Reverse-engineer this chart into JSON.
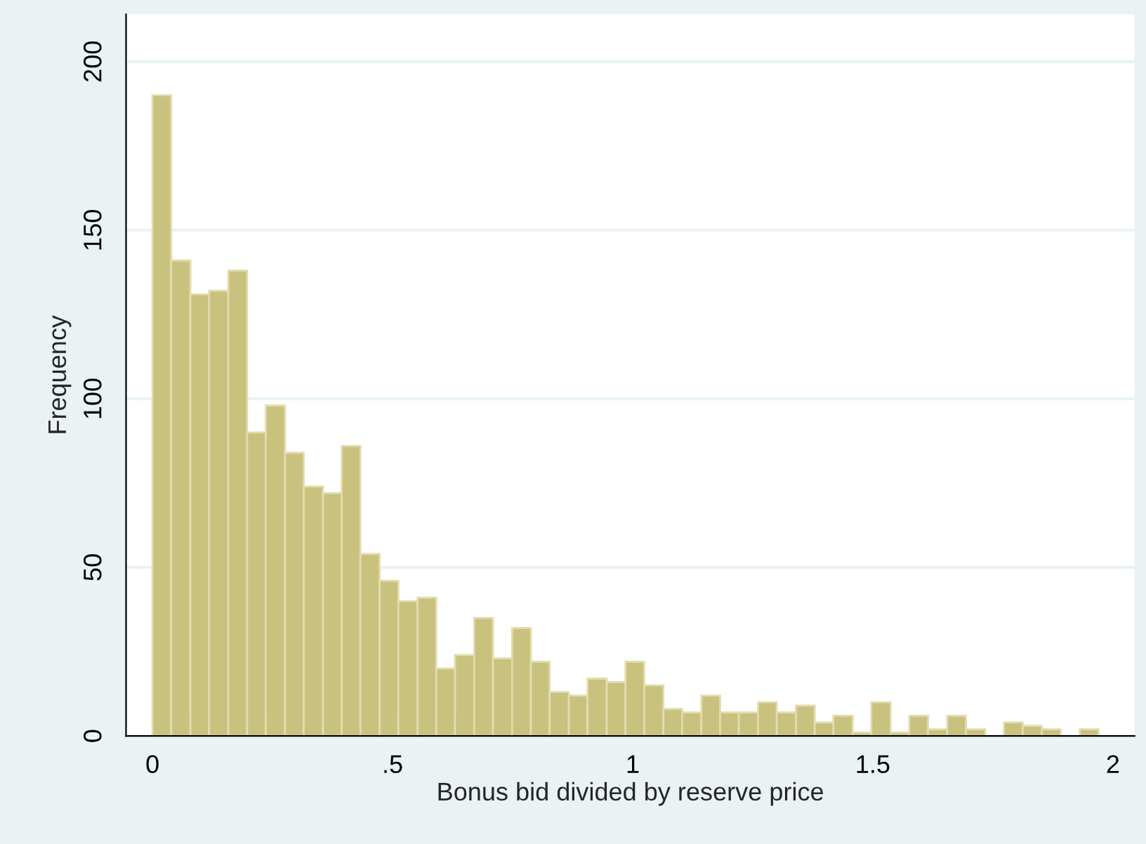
{
  "chart_data": {
    "type": "histogram",
    "xlabel": "Bonus bid divided by reserve price",
    "ylabel": "Frequency",
    "bins": [
      0,
      0.039,
      0.079,
      0.118,
      0.158,
      0.197,
      0.236,
      0.276,
      0.315,
      0.355,
      0.394,
      0.433,
      0.473,
      0.512,
      0.552,
      0.591,
      0.63,
      0.67,
      0.709,
      0.749,
      0.788,
      0.827,
      0.867,
      0.906,
      0.946,
      0.985,
      1.024,
      1.064,
      1.103,
      1.143,
      1.182,
      1.221,
      1.261,
      1.3,
      1.34,
      1.379,
      1.418,
      1.458,
      1.497,
      1.537,
      1.576,
      1.615,
      1.655,
      1.694,
      1.734,
      1.773,
      1.812,
      1.852,
      1.891,
      1.931,
      1.97
    ],
    "values": [
      190,
      141,
      131,
      132,
      138,
      90,
      98,
      84,
      74,
      72,
      86,
      54,
      46,
      40,
      41,
      20,
      24,
      35,
      23,
      32,
      22,
      13,
      12,
      17,
      16,
      22,
      15,
      8,
      7,
      12,
      7,
      7,
      10,
      7,
      9,
      4,
      6,
      1,
      10,
      1,
      6,
      2,
      6,
      2,
      0,
      4,
      3,
      2,
      0,
      2
    ],
    "color": "#c9c17e",
    "xlim": [
      -0.055,
      2.045
    ],
    "ylim": [
      0,
      214
    ],
    "xticks": [
      0,
      {
        "value": 0.5,
        "label": ".5"
      },
      1,
      1.5,
      2
    ],
    "yticks": [
      0,
      50,
      100,
      150,
      200
    ],
    "grid": "y"
  }
}
